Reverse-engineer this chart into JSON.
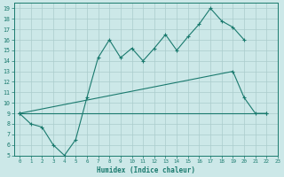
{
  "xlabel": "Humidex (Indice chaleur)",
  "background_color": "#cce8e8",
  "grid_color": "#aacccc",
  "line_color": "#1a7a6e",
  "xlim": [
    -0.5,
    23
  ],
  "ylim": [
    5,
    19.5
  ],
  "xticks": [
    0,
    1,
    2,
    3,
    4,
    5,
    6,
    7,
    8,
    9,
    10,
    11,
    12,
    13,
    14,
    15,
    16,
    17,
    18,
    19,
    20,
    21,
    22,
    23
  ],
  "yticks": [
    5,
    6,
    7,
    8,
    9,
    10,
    11,
    12,
    13,
    14,
    15,
    16,
    17,
    18,
    19
  ],
  "line1": {
    "x": [
      0,
      1,
      2,
      3,
      4,
      5,
      6,
      7,
      8,
      9,
      10,
      11,
      12,
      13,
      14,
      15,
      16,
      17,
      18,
      19,
      20
    ],
    "y": [
      9,
      8,
      7.7,
      6,
      5,
      6.5,
      10.5,
      14.3,
      16.0,
      14.3,
      15.2,
      14.0,
      15.2,
      16.5,
      15.0,
      16.3,
      17.5,
      19.0,
      17.8,
      17.2,
      16.0
    ]
  },
  "line2": {
    "x": [
      0,
      19,
      20,
      21,
      22
    ],
    "y": [
      9,
      13.0,
      10.5,
      9.0,
      9.0
    ]
  },
  "line3": {
    "x": [
      0,
      22
    ],
    "y": [
      9,
      9.0
    ]
  }
}
